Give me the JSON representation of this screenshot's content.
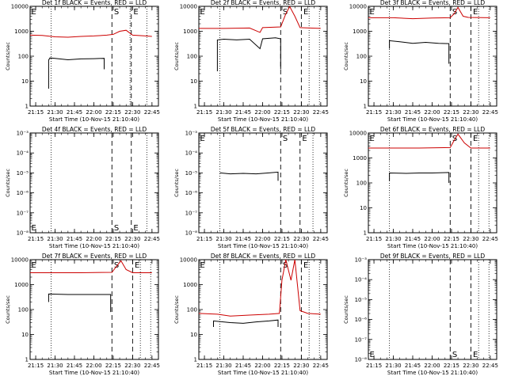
{
  "figure": {
    "shared_xaxis_title": "Start Time (10-Nov-15 21:10:40)",
    "shared_ylabel": "Counts/sec",
    "x_tick_labels": [
      "21:15",
      "21:30",
      "21:45",
      "22:00",
      "22:15",
      "22:30",
      "22:45"
    ],
    "colors": {
      "events": "#000000",
      "lld": "#cc0000",
      "frame": "#000000",
      "background": "#ffffff"
    }
  },
  "chart_data": [
    {
      "type": "line",
      "title": "Det 1f BLACK = Events, RED = LLD",
      "xlabel": "Start Time (10-Nov-15 21:10:40)",
      "ylabel": "Counts/sec",
      "xlim": [
        "21:10:40",
        "22:50"
      ],
      "ylim": [
        1,
        10000
      ],
      "yscale": "log",
      "ytick_labels": [
        "1",
        "10",
        "100",
        "1000",
        "10000"
      ],
      "vlines_dotted": [
        "21:27",
        "22:28",
        "22:41"
      ],
      "vlines_dashed": [
        "22:14",
        "22:29"
      ],
      "markers": [
        {
          "label": "E",
          "x": "21:11"
        },
        {
          "label": "S",
          "x": "22:15"
        },
        {
          "label": "E",
          "x": "22:30"
        }
      ],
      "series": [
        {
          "name": "Events",
          "color": "#000000",
          "points": [
            [
              "21:25",
              5
            ],
            [
              "21:25",
              70
            ],
            [
              "21:26",
              85
            ],
            [
              "21:30",
              82
            ],
            [
              "21:40",
              72
            ],
            [
              "21:50",
              78
            ],
            [
              "22:00",
              80
            ],
            [
              "22:08",
              82
            ],
            [
              "22:08",
              30
            ]
          ]
        },
        {
          "name": "LLD",
          "color": "#cc0000",
          "points": [
            [
              "21:10:40",
              700
            ],
            [
              "21:20",
              680
            ],
            [
              "21:30",
              600
            ],
            [
              "21:40",
              580
            ],
            [
              "21:50",
              620
            ],
            [
              "22:00",
              650
            ],
            [
              "22:10",
              700
            ],
            [
              "22:15",
              750
            ],
            [
              "22:20",
              1000
            ],
            [
              "22:25",
              1100
            ],
            [
              "22:30",
              700
            ],
            [
              "22:40",
              650
            ],
            [
              "22:45",
              620
            ]
          ]
        }
      ]
    },
    {
      "type": "line",
      "title": "Det 2f BLACK = Events, RED = LLD",
      "xlabel": "Start Time (10-Nov-15 21:10:40)",
      "ylabel": "Counts/sec",
      "xlim": [
        "21:10:40",
        "22:50"
      ],
      "ylim": [
        1,
        10000
      ],
      "yscale": "log",
      "ytick_labels": [
        "1",
        "10",
        "100",
        "1000",
        "10000"
      ],
      "vlines_dotted": [
        "21:27",
        "22:36",
        "22:44"
      ],
      "vlines_dashed": [
        "22:14",
        "22:30"
      ],
      "markers": [
        {
          "label": "E",
          "x": "21:11"
        },
        {
          "label": "S",
          "x": "22:15"
        },
        {
          "label": "E",
          "x": "22:31"
        }
      ],
      "series": [
        {
          "name": "Events",
          "color": "#000000",
          "points": [
            [
              "21:25",
              25
            ],
            [
              "21:25",
              450
            ],
            [
              "21:30",
              480
            ],
            [
              "21:40",
              450
            ],
            [
              "21:50",
              480
            ],
            [
              "21:58",
              200
            ],
            [
              "22:00",
              500
            ],
            [
              "22:10",
              550
            ],
            [
              "22:14",
              500
            ],
            [
              "22:14",
              30
            ]
          ]
        },
        {
          "name": "LLD",
          "color": "#cc0000",
          "points": [
            [
              "21:10:40",
              1300
            ],
            [
              "21:30",
              1300
            ],
            [
              "21:50",
              1350
            ],
            [
              "21:58",
              900
            ],
            [
              "22:00",
              1400
            ],
            [
              "22:14",
              1500
            ],
            [
              "22:18",
              5000
            ],
            [
              "22:21",
              9800
            ],
            [
              "22:25",
              4000
            ],
            [
              "22:29",
              1400
            ],
            [
              "22:45",
              1300
            ]
          ]
        }
      ]
    },
    {
      "type": "line",
      "title": "Det 3f BLACK = Events, RED = LLD",
      "xlabel": "Start Time (10-Nov-15 21:10:40)",
      "ylabel": "Counts/sec",
      "xlim": [
        "21:10:40",
        "22:50"
      ],
      "ylim": [
        1,
        10000
      ],
      "yscale": "log",
      "ytick_labels": [
        "1",
        "10",
        "100",
        "1000",
        "10000"
      ],
      "vlines_dotted": [
        "21:27",
        "22:36",
        "22:44"
      ],
      "vlines_dashed": [
        "22:14",
        "22:30"
      ],
      "markers": [
        {
          "label": "E",
          "x": "21:11"
        },
        {
          "label": "S",
          "x": "22:15"
        },
        {
          "label": "E",
          "x": "22:31"
        }
      ],
      "series": [
        {
          "name": "Events",
          "color": "#000000",
          "points": [
            [
              "21:27",
              200
            ],
            [
              "21:27",
              420
            ],
            [
              "21:35",
              380
            ],
            [
              "21:45",
              330
            ],
            [
              "21:55",
              360
            ],
            [
              "22:05",
              330
            ],
            [
              "22:13",
              320
            ],
            [
              "22:13",
              50
            ]
          ]
        },
        {
          "name": "LLD",
          "color": "#cc0000",
          "points": [
            [
              "21:10:40",
              3500
            ],
            [
              "21:30",
              3500
            ],
            [
              "21:45",
              3200
            ],
            [
              "22:00",
              3400
            ],
            [
              "22:14",
              3500
            ],
            [
              "22:17",
              5000
            ],
            [
              "22:20",
              9000
            ],
            [
              "22:24",
              4000
            ],
            [
              "22:28",
              3600
            ],
            [
              "22:45",
              3500
            ]
          ]
        }
      ]
    },
    {
      "type": "line",
      "title": "Det 4f BLACK = Events, RED = LLD",
      "xlabel": "Start Time (10-Nov-15 21:10:40)",
      "ylabel": "Counts/sec",
      "xlim": [
        "21:10:40",
        "22:50"
      ],
      "ylim": [
        1e-08,
        0.001
      ],
      "yscale": "log",
      "ytick_labels": [
        "10⁻⁸",
        "10⁻⁷",
        "10⁻⁶",
        "10⁻⁵",
        "10⁻⁴",
        "10⁻³"
      ],
      "vlines_dotted": [
        "21:27",
        "22:41"
      ],
      "vlines_dashed": [
        "22:14",
        "22:29"
      ],
      "markers": [
        {
          "label": "E",
          "x": "21:11"
        },
        {
          "label": "S",
          "x": "22:15"
        },
        {
          "label": "E",
          "x": "22:30"
        }
      ],
      "series": []
    },
    {
      "type": "line",
      "title": "Det 5f BLACK = Events, RED = LLD",
      "xlabel": "Start Time (10-Nov-15 21:10:40)",
      "ylabel": "Counts/sec",
      "xlim": [
        "21:10:40",
        "22:50"
      ],
      "ylim": [
        1e-08,
        0.001
      ],
      "yscale": "log",
      "ytick_labels": [
        "10⁻⁸",
        "10⁻⁷",
        "10⁻⁶",
        "10⁻⁵",
        "10⁻⁴",
        "10⁻³"
      ],
      "vlines_dotted": [
        "21:27",
        "22:39"
      ],
      "vlines_dashed": [
        "22:14",
        "22:29"
      ],
      "markers": [
        {
          "label": "E",
          "x": "21:11"
        },
        {
          "label": "S",
          "x": "22:15"
        },
        {
          "label": "E",
          "x": "22:30"
        }
      ],
      "series": [
        {
          "name": "Events",
          "color": "#000000",
          "points": [
            [
              "21:27",
              1e-05
            ],
            [
              "21:35",
              9e-06
            ],
            [
              "21:45",
              9.5e-06
            ],
            [
              "21:55",
              9e-06
            ],
            [
              "22:05",
              1e-05
            ],
            [
              "22:12",
              1.1e-05
            ],
            [
              "22:12",
              4e-06
            ]
          ]
        }
      ]
    },
    {
      "type": "line",
      "title": "Det 6f BLACK = Events, RED = LLD",
      "xlabel": "Start Time (10-Nov-15 21:10:40)",
      "ylabel": "Counts/sec",
      "xlim": [
        "21:10:40",
        "22:50"
      ],
      "ylim": [
        1,
        10000
      ],
      "yscale": "log",
      "ytick_labels": [
        "1",
        "10",
        "100",
        "1000",
        "10000"
      ],
      "vlines_dotted": [
        "21:27",
        "22:36",
        "22:44"
      ],
      "vlines_dashed": [
        "22:14",
        "22:30"
      ],
      "markers": [
        {
          "label": "E",
          "x": "21:11"
        },
        {
          "label": "S",
          "x": "22:15"
        },
        {
          "label": "E",
          "x": "22:31"
        }
      ],
      "series": [
        {
          "name": "Events",
          "color": "#000000",
          "points": [
            [
              "21:27",
              120
            ],
            [
              "21:27",
              250
            ],
            [
              "21:40",
              240
            ],
            [
              "21:50",
              250
            ],
            [
              "22:00",
              250
            ],
            [
              "22:13",
              260
            ],
            [
              "22:13",
              100
            ]
          ]
        },
        {
          "name": "LLD",
          "color": "#cc0000",
          "points": [
            [
              "21:10:40",
              2500
            ],
            [
              "21:30",
              2500
            ],
            [
              "21:50",
              2500
            ],
            [
              "22:14",
              2600
            ],
            [
              "22:17",
              5000
            ],
            [
              "22:20",
              9000
            ],
            [
              "22:25",
              4000
            ],
            [
              "22:30",
              2500
            ],
            [
              "22:45",
              2500
            ]
          ]
        }
      ]
    },
    {
      "type": "line",
      "title": "Det 7f BLACK = Events, RED = LLD",
      "xlabel": "Start Time (10-Nov-15 21:10:40)",
      "ylabel": "Counts/sec",
      "xlim": [
        "21:10:40",
        "22:50"
      ],
      "ylim": [
        1,
        10000
      ],
      "yscale": "log",
      "ytick_labels": [
        "1",
        "10",
        "100",
        "1000",
        "10000"
      ],
      "vlines_dotted": [
        "21:27",
        "22:36",
        "22:44"
      ],
      "vlines_dashed": [
        "22:14",
        "22:30"
      ],
      "markers": [
        {
          "label": "E",
          "x": "21:11"
        },
        {
          "label": "S",
          "x": "22:15"
        },
        {
          "label": "E",
          "x": "22:31"
        }
      ],
      "series": [
        {
          "name": "Events",
          "color": "#000000",
          "points": [
            [
              "21:25",
              200
            ],
            [
              "21:25",
              420
            ],
            [
              "21:40",
              400
            ],
            [
              "21:55",
              400
            ],
            [
              "22:13",
              400
            ],
            [
              "22:13",
              80
            ]
          ]
        },
        {
          "name": "LLD",
          "color": "#cc0000",
          "points": [
            [
              "21:10:40",
              3000
            ],
            [
              "21:30",
              3000
            ],
            [
              "21:50",
              3000
            ],
            [
              "22:14",
              3100
            ],
            [
              "22:17",
              5000
            ],
            [
              "22:21",
              9000
            ],
            [
              "22:25",
              4000
            ],
            [
              "22:30",
              3000
            ],
            [
              "22:45",
              3000
            ]
          ]
        }
      ]
    },
    {
      "type": "line",
      "title": "Det 8f BLACK = Events, RED = LLD",
      "xlabel": "Start Time (10-Nov-15 21:10:40)",
      "ylabel": "Counts/sec",
      "xlim": [
        "21:10:40",
        "22:50"
      ],
      "ylim": [
        1,
        10000
      ],
      "yscale": "log",
      "ytick_labels": [
        "1",
        "10",
        "100",
        "1000",
        "10000"
      ],
      "vlines_dotted": [
        "21:27",
        "22:36",
        "22:44"
      ],
      "vlines_dashed": [
        "22:14",
        "22:30"
      ],
      "markers": [
        {
          "label": "E",
          "x": "21:11"
        },
        {
          "label": "S",
          "x": "22:15"
        },
        {
          "label": "E",
          "x": "22:31"
        }
      ],
      "series": [
        {
          "name": "Events",
          "color": "#000000",
          "points": [
            [
              "21:22",
              20
            ],
            [
              "21:22",
              35
            ],
            [
              "21:35",
              30
            ],
            [
              "21:45",
              28
            ],
            [
              "21:55",
              32
            ],
            [
              "22:05",
              35
            ],
            [
              "22:12",
              38
            ],
            [
              "22:12",
              20
            ]
          ]
        },
        {
          "name": "LLD",
          "color": "#cc0000",
          "points": [
            [
              "21:10:40",
              70
            ],
            [
              "21:25",
              65
            ],
            [
              "21:35",
              55
            ],
            [
              "21:50",
              60
            ],
            [
              "22:05",
              65
            ],
            [
              "22:13",
              70
            ],
            [
              "22:15",
              1500
            ],
            [
              "22:18",
              10000
            ],
            [
              "22:22",
              1500
            ],
            [
              "22:25",
              10000
            ],
            [
              "22:29",
              90
            ],
            [
              "22:35",
              70
            ],
            [
              "22:45",
              65
            ]
          ]
        }
      ]
    },
    {
      "type": "line",
      "title": "Det 9f BLACK = Events, RED = LLD",
      "xlabel": "Start Time (10-Nov-15 21:10:40)",
      "ylabel": "Counts/sec",
      "xlim": [
        "21:10:40",
        "22:50"
      ],
      "ylim": [
        1e-08,
        0.001
      ],
      "yscale": "log",
      "ytick_labels": [
        "10⁻⁸",
        "10⁻⁷",
        "10⁻⁶",
        "10⁻⁵",
        "10⁻⁴",
        "10⁻³"
      ],
      "vlines_dotted": [
        "21:27",
        "22:36",
        "22:44"
      ],
      "vlines_dashed": [
        "22:14",
        "22:30"
      ],
      "markers": [
        {
          "label": "E",
          "x": "21:11"
        },
        {
          "label": "S",
          "x": "22:15"
        },
        {
          "label": "E",
          "x": "22:31"
        }
      ],
      "series": []
    }
  ]
}
